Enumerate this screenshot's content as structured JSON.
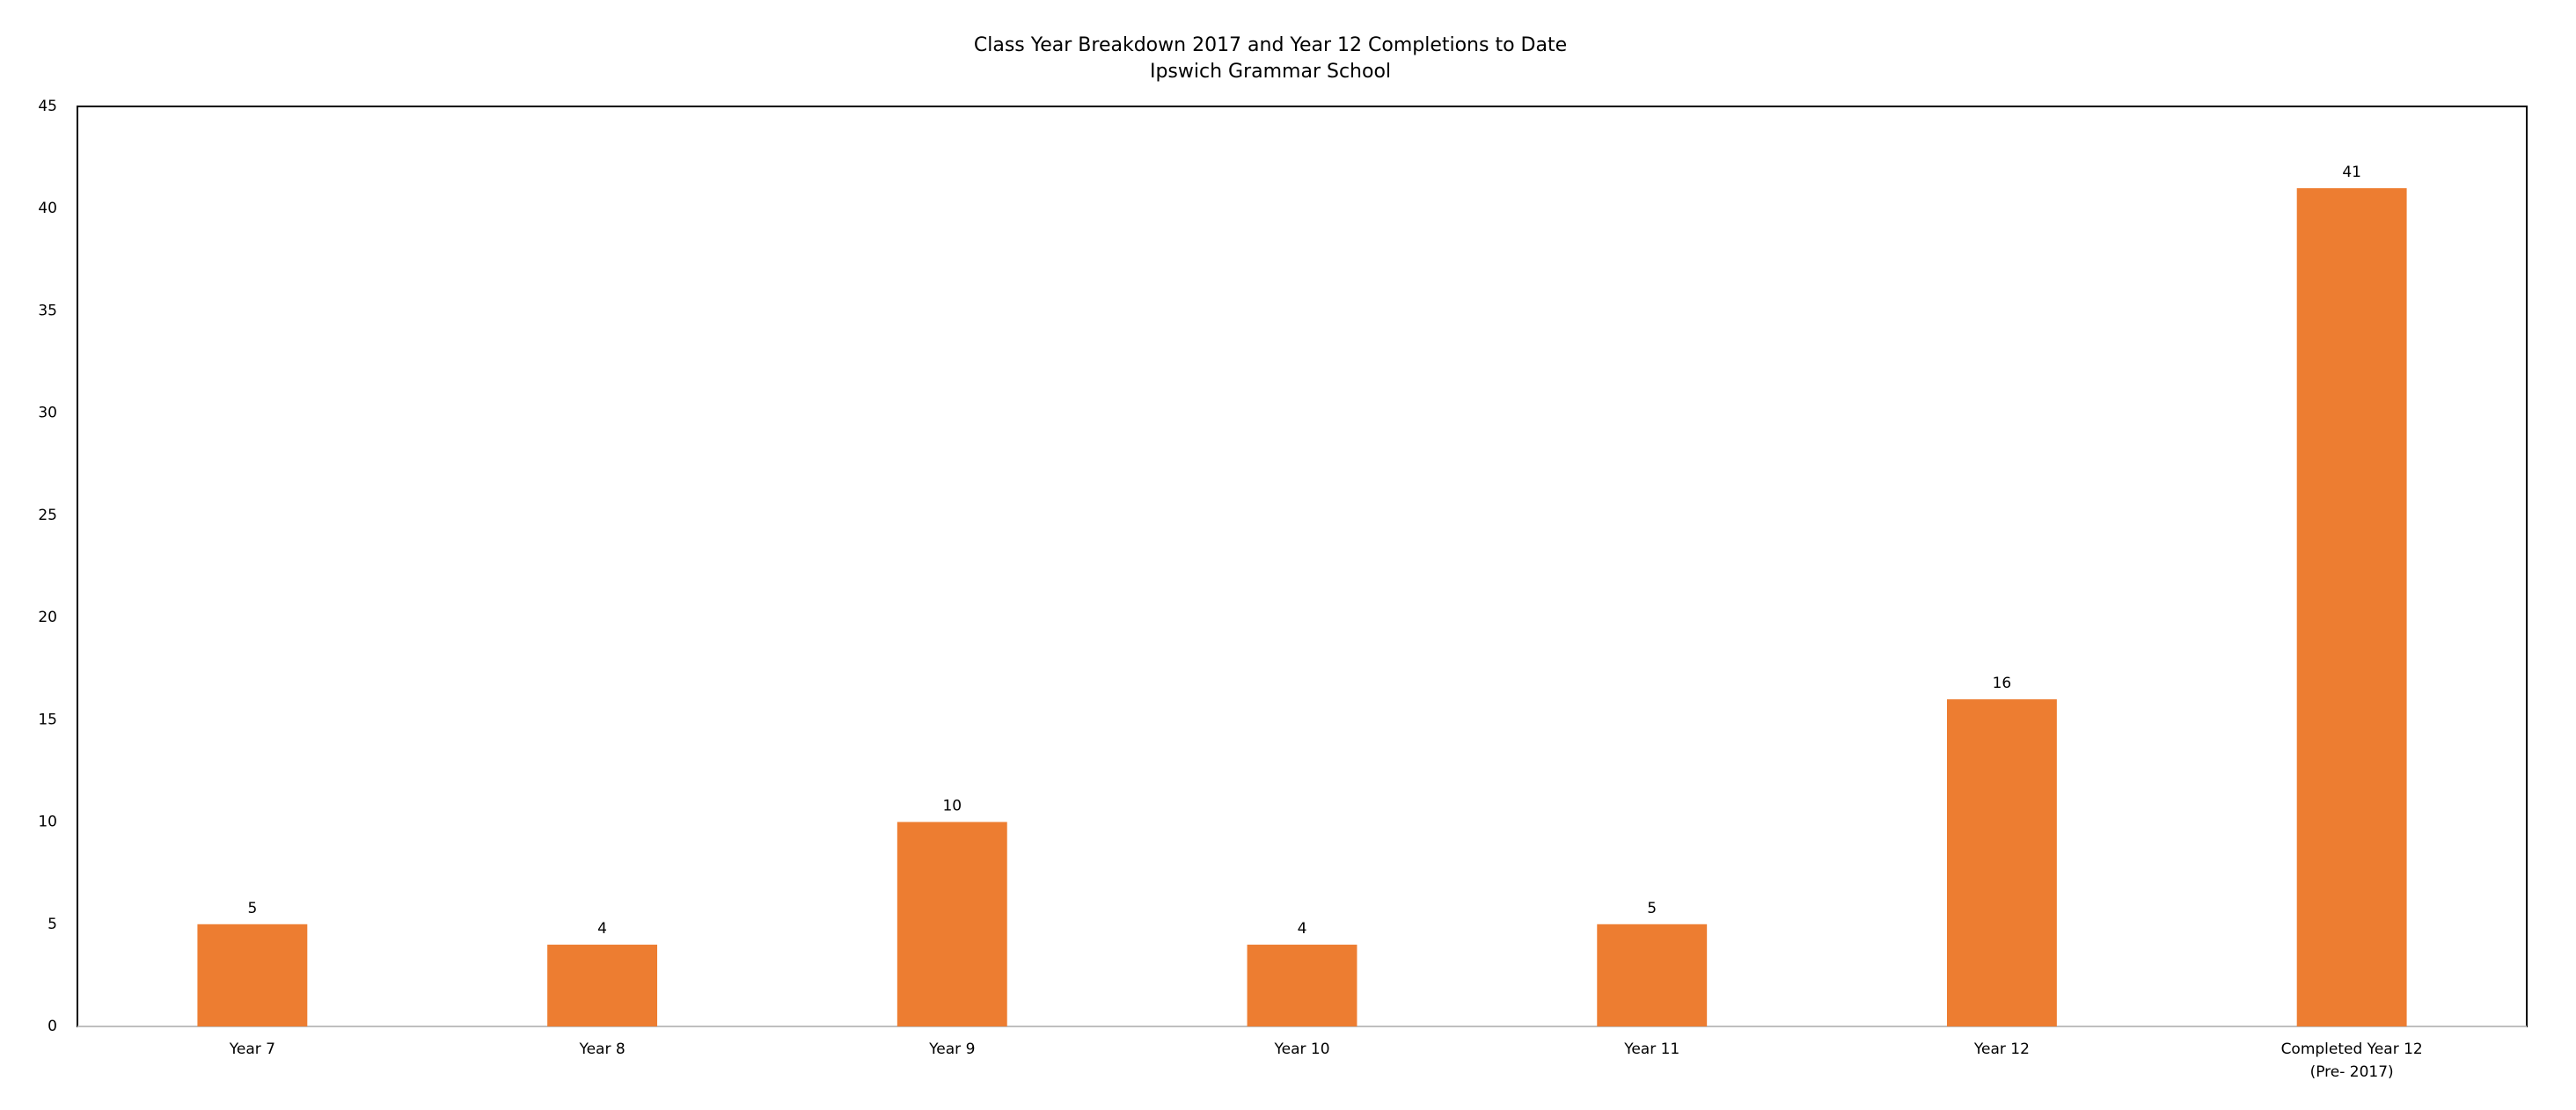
{
  "chart_data": {
    "type": "bar",
    "title": "Class Year Breakdown 2017 and Year 12 Completions to Date",
    "subtitle": "Ipswich Grammar School",
    "categories": [
      "Year 7",
      "Year 8",
      "Year 9",
      "Year 10",
      "Year 11",
      "Year 12",
      "Completed Year 12\n(Pre- 2017)"
    ],
    "values": [
      5,
      4,
      10,
      4,
      5,
      16,
      41
    ],
    "color": "#ed7d31",
    "ylim": [
      0,
      45
    ],
    "yticks": [
      0,
      5,
      10,
      15,
      20,
      25,
      30,
      35,
      40,
      45
    ],
    "grid": false
  }
}
